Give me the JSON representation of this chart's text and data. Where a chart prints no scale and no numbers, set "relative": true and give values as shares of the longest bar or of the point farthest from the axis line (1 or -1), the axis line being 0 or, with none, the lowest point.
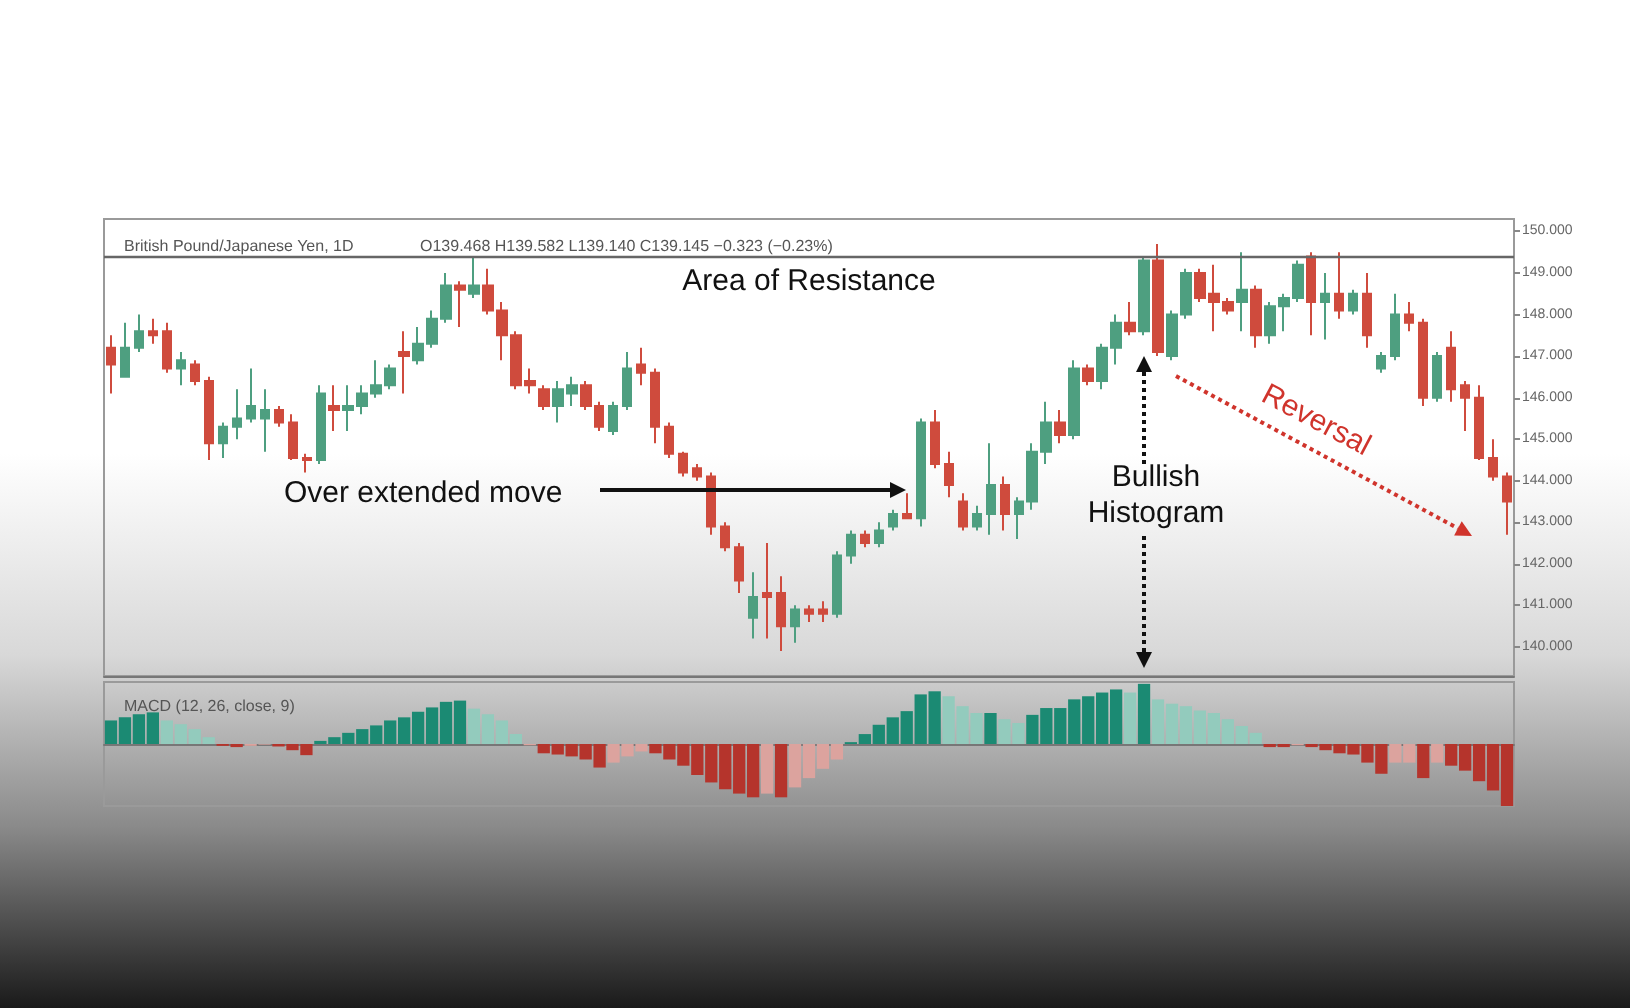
{
  "chart_data": [
    {
      "type": "candlestick",
      "title": "British Pound/Japanese Yen, 1D",
      "subtitle": "O139.468 H139.582 L139.140 C139.145 −0.323 (−0.23%)",
      "categories": [
        null,
        null,
        null,
        null,
        null,
        null,
        null,
        null,
        null,
        null,
        null,
        null,
        null,
        null,
        null,
        null,
        null,
        null,
        null,
        null,
        null,
        null,
        null,
        null,
        null,
        null,
        null,
        null,
        null,
        null,
        null,
        null,
        null,
        null,
        null,
        null,
        null,
        null,
        null,
        null,
        null,
        null,
        null,
        null,
        null,
        null,
        null,
        null,
        null,
        null,
        null,
        null,
        null,
        null,
        null,
        null,
        null,
        null,
        null,
        null,
        null,
        null,
        null,
        null,
        null,
        null,
        null,
        null,
        null,
        null,
        null,
        null,
        null,
        null,
        null,
        null,
        null,
        null,
        null,
        null,
        null,
        null,
        null,
        null,
        null,
        null,
        null,
        null,
        null,
        null,
        null,
        null,
        null,
        null,
        null,
        null,
        null,
        null,
        null,
        null,
        null
      ],
      "ylim": [
        139.3,
        150.3
      ],
      "yticks": [
        {
          "value": 140,
          "label": "140.000"
        },
        {
          "value": 141,
          "label": "141.000"
        },
        {
          "value": 142,
          "label": "142.000"
        },
        {
          "value": 143,
          "label": "143.000"
        },
        {
          "value": 144,
          "label": "144.000"
        },
        {
          "value": 145,
          "label": "145.000"
        },
        {
          "value": 146,
          "label": "146.000"
        },
        {
          "value": 147,
          "label": "147.000"
        },
        {
          "value": 148,
          "label": "148.000"
        },
        {
          "value": 149,
          "label": "149.000"
        },
        {
          "value": 150,
          "label": "150.000"
        }
      ],
      "tick_labels": "y",
      "ohlc": [
        [
          147.2,
          147.5,
          146.1,
          146.8
        ],
        [
          146.5,
          147.8,
          146.5,
          147.2
        ],
        [
          147.2,
          148.0,
          147.1,
          147.6
        ],
        [
          147.6,
          147.9,
          147.3,
          147.5
        ],
        [
          147.6,
          147.8,
          146.6,
          146.7
        ],
        [
          146.7,
          147.1,
          146.3,
          146.9
        ],
        [
          146.8,
          146.9,
          146.3,
          146.4
        ],
        [
          146.4,
          146.5,
          144.5,
          144.9
        ],
        [
          144.9,
          145.4,
          144.55,
          145.3
        ],
        [
          145.3,
          146.2,
          145.0,
          145.5
        ],
        [
          145.5,
          146.7,
          145.4,
          145.8
        ],
        [
          145.5,
          146.2,
          144.7,
          145.7
        ],
        [
          145.7,
          145.8,
          145.3,
          145.4
        ],
        [
          145.4,
          145.6,
          144.5,
          144.55
        ],
        [
          144.55,
          144.65,
          144.2,
          144.5
        ],
        [
          144.5,
          146.3,
          144.4,
          146.1
        ],
        [
          145.8,
          146.3,
          145.2,
          145.7
        ],
        [
          145.7,
          146.3,
          145.2,
          145.8
        ],
        [
          145.8,
          146.3,
          145.6,
          146.1
        ],
        [
          146.1,
          146.9,
          146.0,
          146.3
        ],
        [
          146.3,
          146.8,
          146.2,
          146.7
        ],
        [
          147.1,
          147.6,
          146.1,
          147.0
        ],
        [
          146.9,
          147.7,
          146.8,
          147.3
        ],
        [
          147.3,
          148.1,
          147.2,
          147.9
        ],
        [
          147.9,
          149.0,
          147.8,
          148.7
        ],
        [
          148.7,
          148.8,
          147.7,
          148.6
        ],
        [
          148.5,
          149.4,
          148.4,
          148.7
        ],
        [
          148.7,
          149.1,
          148.0,
          148.1
        ],
        [
          148.1,
          148.3,
          146.9,
          147.5
        ],
        [
          147.5,
          147.6,
          146.2,
          146.3
        ],
        [
          146.4,
          146.7,
          146.1,
          146.3
        ],
        [
          146.2,
          146.3,
          145.7,
          145.8
        ],
        [
          145.8,
          146.4,
          145.4,
          146.2
        ],
        [
          146.1,
          146.5,
          145.8,
          146.3
        ],
        [
          146.3,
          146.4,
          145.7,
          145.8
        ],
        [
          145.8,
          145.9,
          145.2,
          145.3
        ],
        [
          145.2,
          145.9,
          145.1,
          145.8
        ],
        [
          145.8,
          147.1,
          145.7,
          146.7
        ],
        [
          146.8,
          147.2,
          146.3,
          146.6
        ],
        [
          146.6,
          146.7,
          144.9,
          145.3
        ],
        [
          145.3,
          145.4,
          144.55,
          144.65
        ],
        [
          144.65,
          144.7,
          144.1,
          144.2
        ],
        [
          144.3,
          144.4,
          144.0,
          144.1
        ],
        [
          144.1,
          144.2,
          142.7,
          142.9
        ],
        [
          142.9,
          143.0,
          142.3,
          142.4
        ],
        [
          142.4,
          142.5,
          141.3,
          141.6
        ],
        [
          140.7,
          141.8,
          140.2,
          141.2
        ],
        [
          141.3,
          142.5,
          140.2,
          141.2
        ],
        [
          141.3,
          141.7,
          139.9,
          140.5
        ],
        [
          140.5,
          141.0,
          140.1,
          140.9
        ],
        [
          140.9,
          141.0,
          140.6,
          140.8
        ],
        [
          140.9,
          141.1,
          140.6,
          140.8
        ],
        [
          140.8,
          142.3,
          140.7,
          142.2
        ],
        [
          142.2,
          142.8,
          142.0,
          142.7
        ],
        [
          142.7,
          142.8,
          142.4,
          142.5
        ],
        [
          142.5,
          143.0,
          142.4,
          142.8
        ],
        [
          142.9,
          143.3,
          142.8,
          143.2
        ],
        [
          143.2,
          143.7,
          143.1,
          143.1
        ],
        [
          143.1,
          145.5,
          142.9,
          145.4
        ],
        [
          145.4,
          145.7,
          144.3,
          144.4
        ],
        [
          144.4,
          144.7,
          143.6,
          143.9
        ],
        [
          143.5,
          143.7,
          142.8,
          142.9
        ],
        [
          142.9,
          143.4,
          142.8,
          143.2
        ],
        [
          143.2,
          144.9,
          142.7,
          143.9
        ],
        [
          143.9,
          144.1,
          142.8,
          143.2
        ],
        [
          143.2,
          143.6,
          142.6,
          143.5
        ],
        [
          143.5,
          144.9,
          143.3,
          144.7
        ],
        [
          144.7,
          145.9,
          144.4,
          145.4
        ],
        [
          145.4,
          145.7,
          144.9,
          145.1
        ],
        [
          145.1,
          146.9,
          145.0,
          146.7
        ],
        [
          146.7,
          146.8,
          146.3,
          146.4
        ],
        [
          146.4,
          147.3,
          146.2,
          147.2
        ],
        [
          147.2,
          148.0,
          146.8,
          147.8
        ],
        [
          147.8,
          148.3,
          147.5,
          147.6
        ],
        [
          147.6,
          149.4,
          147.5,
          149.3
        ],
        [
          149.3,
          149.7,
          147.0,
          147.1
        ],
        [
          147.0,
          148.1,
          146.9,
          148.0
        ],
        [
          148.0,
          149.1,
          147.9,
          149.0
        ],
        [
          149.0,
          149.1,
          148.3,
          148.4
        ],
        [
          148.5,
          149.2,
          147.6,
          148.3
        ],
        [
          148.3,
          148.4,
          148.0,
          148.1
        ],
        [
          148.3,
          149.5,
          147.6,
          148.6
        ],
        [
          148.6,
          148.7,
          147.2,
          147.5
        ],
        [
          147.5,
          148.3,
          147.3,
          148.2
        ],
        [
          148.2,
          148.5,
          147.6,
          148.4
        ],
        [
          148.4,
          149.3,
          148.3,
          149.2
        ],
        [
          149.4,
          149.5,
          147.5,
          148.3
        ],
        [
          148.3,
          149.0,
          147.4,
          148.5
        ],
        [
          148.5,
          149.5,
          147.9,
          148.1
        ],
        [
          148.1,
          148.6,
          148.0,
          148.5
        ],
        [
          148.5,
          149.0,
          147.2,
          147.5
        ],
        [
          146.7,
          147.1,
          146.6,
          147.0
        ],
        [
          147.0,
          148.5,
          146.9,
          148.0
        ],
        [
          148.0,
          148.3,
          147.6,
          147.8
        ],
        [
          147.8,
          147.9,
          145.8,
          146.0
        ],
        [
          146.0,
          147.1,
          145.9,
          147.0
        ],
        [
          147.2,
          147.6,
          145.9,
          146.2
        ],
        [
          146.3,
          146.4,
          145.2,
          146.0
        ],
        [
          146.0,
          146.3,
          144.5,
          144.55
        ],
        [
          144.55,
          145.0,
          144.0,
          144.1
        ],
        [
          144.1,
          144.2,
          142.7,
          143.5
        ]
      ],
      "colors": [
        "#cf4b3d",
        "#4e9f80",
        "#4e9f80",
        "#cf4b3d",
        "#cf4b3d",
        "#4e9f80",
        "#cf4b3d",
        "#cf4b3d",
        "#4e9f80",
        "#4e9f80",
        "#4e9f80",
        "#4e9f80",
        "#cf4b3d",
        "#cf4b3d",
        "#cf4b3d",
        "#4e9f80",
        "#cf4b3d",
        "#4e9f80",
        "#4e9f80",
        "#4e9f80",
        "#4e9f80",
        "#cf4b3d",
        "#4e9f80",
        "#4e9f80",
        "#4e9f80",
        "#cf4b3d",
        "#4e9f80",
        "#cf4b3d",
        "#cf4b3d",
        "#cf4b3d",
        "#cf4b3d",
        "#cf4b3d",
        "#4e9f80",
        "#4e9f80",
        "#cf4b3d",
        "#cf4b3d",
        "#4e9f80",
        "#4e9f80",
        "#cf4b3d",
        "#cf4b3d",
        "#cf4b3d",
        "#cf4b3d",
        "#cf4b3d",
        "#cf4b3d",
        "#cf4b3d",
        "#cf4b3d",
        "#4e9f80",
        "#cf4b3d",
        "#cf4b3d",
        "#4e9f80",
        "#cf4b3d",
        "#cf4b3d",
        "#4e9f80",
        "#4e9f80",
        "#cf4b3d",
        "#4e9f80",
        "#4e9f80",
        "#cf4b3d",
        "#4e9f80",
        "#cf4b3d",
        "#cf4b3d",
        "#cf4b3d",
        "#4e9f80",
        "#4e9f80",
        "#cf4b3d",
        "#4e9f80",
        "#4e9f80",
        "#4e9f80",
        "#cf4b3d",
        "#4e9f80",
        "#cf4b3d",
        "#4e9f80",
        "#4e9f80",
        "#cf4b3d",
        "#4e9f80",
        "#cf4b3d",
        "#4e9f80",
        "#4e9f80",
        "#cf4b3d",
        "#cf4b3d",
        "#cf4b3d",
        "#4e9f80",
        "#cf4b3d",
        "#4e9f80",
        "#4e9f80",
        "#4e9f80",
        "#cf4b3d",
        "#4e9f80",
        "#cf4b3d",
        "#4e9f80",
        "#cf4b3d",
        "#4e9f80",
        "#4e9f80",
        "#cf4b3d",
        "#cf4b3d",
        "#4e9f80",
        "#cf4b3d",
        "#cf4b3d",
        "#cf4b3d",
        "#cf4b3d",
        "#cf4b3d"
      ],
      "ref_lines": [
        {
          "axis": "y",
          "value": 149.4,
          "label": "Area of Resistance",
          "color": "#666666"
        }
      ],
      "annotations": [
        "Over extended move",
        "Bullish Histogram",
        "Reversal"
      ]
    },
    {
      "type": "bar",
      "title": "MACD (12, 26, close, 9)",
      "relative": true,
      "tick_labels": false,
      "categories": [
        null,
        null,
        null,
        null,
        null,
        null,
        null,
        null,
        null,
        null,
        null,
        null,
        null,
        null,
        null,
        null,
        null,
        null,
        null,
        null,
        null,
        null,
        null,
        null,
        null,
        null,
        null,
        null,
        null,
        null,
        null,
        null,
        null,
        null,
        null,
        null,
        null,
        null,
        null,
        null,
        null,
        null,
        null,
        null,
        null,
        null,
        null,
        null,
        null,
        null,
        null,
        null,
        null,
        null,
        null,
        null,
        null,
        null,
        null,
        null,
        null,
        null,
        null,
        null,
        null,
        null,
        null,
        null,
        null,
        null,
        null,
        null,
        null,
        null,
        null,
        null,
        null,
        null,
        null,
        null,
        null,
        null,
        null,
        null,
        null,
        null,
        null,
        null,
        null,
        null,
        null,
        null,
        null,
        null,
        null,
        null,
        null,
        null,
        null,
        null,
        null
      ],
      "values": [
        0.38,
        0.43,
        0.48,
        0.51,
        0.38,
        0.32,
        0.24,
        0.11,
        -0.03,
        -0.05,
        -0.03,
        -0.01,
        -0.04,
        -0.1,
        -0.18,
        0.05,
        0.11,
        0.18,
        0.24,
        0.3,
        0.38,
        0.43,
        0.52,
        0.59,
        0.68,
        0.7,
        0.57,
        0.48,
        0.38,
        0.16,
        -0.02,
        -0.15,
        -0.17,
        -0.2,
        -0.25,
        -0.38,
        -0.3,
        -0.2,
        -0.12,
        -0.15,
        -0.25,
        -0.35,
        -0.5,
        -0.62,
        -0.73,
        -0.8,
        -0.86,
        -0.8,
        -0.86,
        -0.7,
        -0.55,
        -0.4,
        -0.25,
        0.03,
        0.16,
        0.31,
        0.43,
        0.53,
        0.8,
        0.85,
        0.77,
        0.61,
        0.5,
        0.5,
        0.4,
        0.34,
        0.47,
        0.58,
        0.58,
        0.72,
        0.77,
        0.83,
        0.88,
        0.83,
        0.97,
        0.72,
        0.65,
        0.61,
        0.54,
        0.5,
        0.4,
        0.29,
        0.18,
        -0.05,
        -0.05,
        -0.02,
        -0.05,
        -0.1,
        -0.15,
        -0.17,
        -0.3,
        -0.48,
        -0.3,
        -0.3,
        -0.55,
        -0.3,
        -0.35,
        -0.43,
        -0.6,
        -0.75,
        -1
      ],
      "colors": [
        "#1b8a73",
        "#1b8a73",
        "#1b8a73",
        "#1b8a73",
        "#93cbbd",
        "#93cbbd",
        "#93cbbd",
        "#93cbbd",
        "#b5342c",
        "#b5342c",
        "#dca39e",
        "#dca39e",
        "#b5342c",
        "#b5342c",
        "#b5342c",
        "#1b8a73",
        "#1b8a73",
        "#1b8a73",
        "#1b8a73",
        "#1b8a73",
        "#1b8a73",
        "#1b8a73",
        "#1b8a73",
        "#1b8a73",
        "#1b8a73",
        "#1b8a73",
        "#93cbbd",
        "#93cbbd",
        "#93cbbd",
        "#93cbbd",
        "#dca39e",
        "#b5342c",
        "#b5342c",
        "#b5342c",
        "#b5342c",
        "#b5342c",
        "#dca39e",
        "#dca39e",
        "#dca39e",
        "#b5342c",
        "#b5342c",
        "#b5342c",
        "#b5342c",
        "#b5342c",
        "#b5342c",
        "#b5342c",
        "#b5342c",
        "#dca39e",
        "#b5342c",
        "#dca39e",
        "#dca39e",
        "#dca39e",
        "#dca39e",
        "#1b8a73",
        "#1b8a73",
        "#1b8a73",
        "#1b8a73",
        "#1b8a73",
        "#1b8a73",
        "#1b8a73",
        "#93cbbd",
        "#93cbbd",
        "#93cbbd",
        "#1b8a73",
        "#93cbbd",
        "#93cbbd",
        "#1b8a73",
        "#1b8a73",
        "#1b8a73",
        "#1b8a73",
        "#1b8a73",
        "#1b8a73",
        "#1b8a73",
        "#93cbbd",
        "#1b8a73",
        "#93cbbd",
        "#93cbbd",
        "#93cbbd",
        "#93cbbd",
        "#93cbbd",
        "#93cbbd",
        "#93cbbd",
        "#93cbbd",
        "#b5342c",
        "#b5342c",
        "#dca39e",
        "#b5342c",
        "#b5342c",
        "#b5342c",
        "#b5342c",
        "#b5342c",
        "#b5342c",
        "#dca39e",
        "#dca39e",
        "#b5342c",
        "#dca39e",
        "#b5342c",
        "#b5342c",
        "#b5342c",
        "#b5342c",
        "#b5342c"
      ]
    }
  ]
}
